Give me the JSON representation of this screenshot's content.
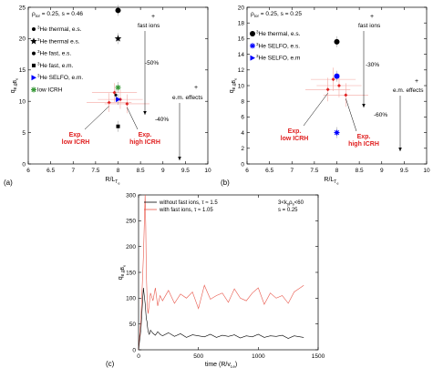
{
  "chart_data": [
    {
      "panel": "(a)",
      "type": "scatter",
      "xlabel_main": "R/L",
      "xlabel_sub": "T e",
      "ylabel_main": "q",
      "ylabel_sub": "e,gB",
      "ylabel_subsub": "e",
      "xlim": [
        6,
        10
      ],
      "ylim": [
        0,
        25
      ],
      "xticks": [
        6,
        6.5,
        7,
        7.5,
        8,
        8.5,
        9,
        9.5,
        10
      ],
      "xtick_labels": [
        "6",
        "6.5",
        "7",
        "7.5",
        "8",
        "8.5",
        "9",
        "9.5",
        "10"
      ],
      "yticks": [
        0,
        5,
        10,
        15,
        20,
        25
      ],
      "ytick_labels": [
        "0",
        "5",
        "10",
        "15",
        "20",
        "25"
      ],
      "param_prefix": "ρ",
      "param_sub": "tor",
      "param_rest": " = 0.25, s = 0.46",
      "legend": [
        {
          "text": "He thermal, e.s.",
          "marker": "dot",
          "color": "#000000"
        },
        {
          "text": "He thermal e.s.",
          "marker": "star",
          "color": "#000000"
        },
        {
          "text": "He fast, e.s.",
          "marker": "dot",
          "color": "#000000"
        },
        {
          "text": "He fast, e.m.",
          "marker": "square",
          "color": "#000000"
        },
        {
          "text": "He SELFO, e.m.",
          "marker": "triangle",
          "color": "#0000ff"
        },
        {
          "text": "low ICRH",
          "marker": "asterisk",
          "color": "#3a9a3a"
        }
      ],
      "legend_sup": "3",
      "points": [
        {
          "x": 8.0,
          "y": 24.5,
          "marker": "bigdot",
          "color": "#000000"
        },
        {
          "x": 8.0,
          "y": 20.0,
          "marker": "star",
          "color": "#000000"
        },
        {
          "x": 8.0,
          "y": 6.0,
          "marker": "square",
          "color": "#000000"
        },
        {
          "x": 8.0,
          "y": 10.3,
          "marker": "triangle",
          "color": "#0000ff"
        },
        {
          "x": 8.0,
          "y": 12.2,
          "marker": "asterisk",
          "color": "#3a9a3a"
        },
        {
          "x": 7.95,
          "y": 11.0,
          "marker": "smalldot",
          "color": "#000000"
        }
      ],
      "exp_points": [
        {
          "x": 7.8,
          "y": 9.8,
          "xerr": 0.5,
          "yerr": 1.5
        },
        {
          "x": 7.92,
          "y": 11.4,
          "xerr": 0.5,
          "yerr": 1.5
        },
        {
          "x": 8.05,
          "y": 10.3,
          "xerr": 0.5,
          "yerr": 1.5
        },
        {
          "x": 8.2,
          "y": 9.6,
          "xerr": 0.5,
          "yerr": 1.5
        }
      ],
      "annotations": {
        "fast_ions": "fast ions",
        "pct1": "-50%",
        "em_effects": "e.m. effects",
        "pct2": "-40%",
        "exp_low": [
          "Exp.",
          "low ICRH"
        ],
        "exp_high": [
          "Exp.",
          "high ICRH"
        ],
        "plus": "+"
      }
    },
    {
      "panel": "(b)",
      "type": "scatter",
      "xlabel_main": "R/L",
      "xlabel_sub": "T e",
      "ylabel_main": "q",
      "ylabel_sub": "e,gB",
      "ylabel_subsub": "e",
      "xlim": [
        6,
        10
      ],
      "ylim": [
        0,
        20
      ],
      "xticks": [
        6,
        6.5,
        7,
        7.5,
        8,
        8.5,
        9,
        9.5,
        10
      ],
      "xtick_labels": [
        "6",
        "6.5",
        "7",
        "7.5",
        "8",
        "8.5",
        "9",
        "9.5",
        "10"
      ],
      "yticks": [
        0,
        2,
        4,
        6,
        8,
        10,
        12,
        14,
        16,
        18,
        20
      ],
      "ytick_labels": [
        "0",
        "2",
        "4",
        "6",
        "8",
        "10",
        "12",
        "14",
        "16",
        "18",
        "20"
      ],
      "param_prefix": "ρ",
      "param_sub": "tor",
      "param_rest": " = 0.25, s = 0.25",
      "legend": [
        {
          "text": "He thermal, e.s.",
          "marker": "bigdot",
          "color": "#000000"
        },
        {
          "text": "He SELFO, e.s.",
          "marker": "asterisk",
          "color": "#0000ff"
        },
        {
          "text": "He SELFO, e.m",
          "marker": "triangle",
          "color": "#0000ff"
        }
      ],
      "legend_sup": "3",
      "points": [
        {
          "x": 8.0,
          "y": 15.6,
          "marker": "bigdot",
          "color": "#000000"
        },
        {
          "x": 8.0,
          "y": 11.2,
          "marker": "bigdot",
          "color": "#0000ff"
        },
        {
          "x": 8.0,
          "y": 4.0,
          "marker": "asterisk",
          "color": "#0000ff"
        }
      ],
      "exp_points": [
        {
          "x": 7.8,
          "y": 9.5,
          "xerr": 0.5,
          "yerr": 1.5
        },
        {
          "x": 7.92,
          "y": 10.8,
          "xerr": 0.5,
          "yerr": 1.5
        },
        {
          "x": 8.05,
          "y": 10.0,
          "xerr": 0.5,
          "yerr": 1.5
        },
        {
          "x": 8.2,
          "y": 8.8,
          "xerr": 0.5,
          "yerr": 1.5
        }
      ],
      "annotations": {
        "fast_ions": "fast ions",
        "pct1": "-30%",
        "em_effects": "e.m. effects",
        "pct2": "-60%",
        "exp_low": [
          "Exp.",
          "low ICRH"
        ],
        "exp_high": [
          "Exp.",
          "high ICRH"
        ],
        "plus": "+"
      }
    },
    {
      "panel": "(c)",
      "type": "line",
      "xlabel": "time (R/v",
      "xlabel_sub": "t,e",
      "xlabel_end": ")",
      "ylabel_main": "q",
      "ylabel_sub": "e,gB",
      "ylabel_subsub": "e",
      "xlim": [
        0,
        1500
      ],
      "ylim": [
        0,
        300
      ],
      "xticks": [
        0,
        500,
        1000,
        1500
      ],
      "xtick_labels": [
        "0",
        "500",
        "1000",
        "1500"
      ],
      "yticks": [
        0,
        50,
        100,
        150,
        200,
        250,
        300
      ],
      "ytick_labels": [
        "0",
        "50",
        "100",
        "150",
        "200",
        "250",
        "300"
      ],
      "info_line1_pre": "3<k",
      "info_line1_sub": "y",
      "info_line1_mid": "ρ",
      "info_line1_sub2": "s",
      "info_line1_post": "<60",
      "info_line2": "s = 0.25",
      "series": [
        {
          "name": "without fast ions, τ ≈ 1.5",
          "color": "#000000",
          "x": [
            0,
            20,
            40,
            55,
            65,
            70,
            75,
            80,
            90,
            100,
            120,
            140,
            160,
            180,
            200,
            250,
            300,
            350,
            400,
            450,
            500,
            550,
            600,
            650,
            700,
            750,
            800,
            850,
            900,
            950,
            1000,
            1050,
            1100,
            1150,
            1200,
            1250,
            1300,
            1350,
            1380
          ],
          "values": [
            0,
            40,
            120,
            90,
            60,
            55,
            45,
            35,
            30,
            38,
            32,
            28,
            35,
            30,
            27,
            33,
            26,
            31,
            24,
            29,
            27,
            25,
            30,
            24,
            28,
            26,
            29,
            23,
            27,
            25,
            30,
            24,
            27,
            26,
            28,
            22,
            27,
            25,
            24
          ]
        },
        {
          "name": "with fast ions, τ ≈ 1.05",
          "color": "#e8564a",
          "x": [
            0,
            20,
            40,
            55,
            60,
            65,
            70,
            75,
            80,
            90,
            100,
            120,
            140,
            160,
            180,
            200,
            250,
            300,
            350,
            400,
            450,
            500,
            550,
            600,
            650,
            700,
            750,
            800,
            850,
            900,
            950,
            1000,
            1050,
            1100,
            1150,
            1200,
            1250,
            1300,
            1350,
            1380
          ],
          "values": [
            0,
            60,
            180,
            300,
            240,
            150,
            110,
            80,
            70,
            90,
            110,
            95,
            120,
            85,
            105,
            95,
            115,
            90,
            108,
            100,
            112,
            80,
            125,
            98,
            105,
            110,
            92,
            118,
            100,
            95,
            110,
            120,
            88,
            110,
            100,
            105,
            90,
            112,
            120,
            125
          ]
        }
      ]
    }
  ],
  "labels": {
    "a": "(a)",
    "b": "(b)",
    "c": "(c)"
  }
}
